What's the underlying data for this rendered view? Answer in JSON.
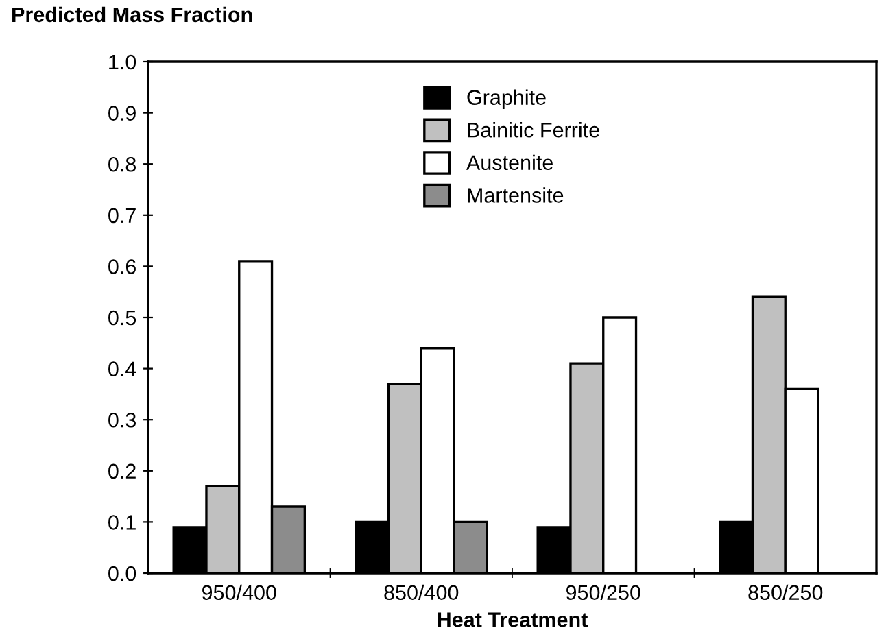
{
  "chart_data": {
    "type": "bar",
    "ylabel": "Predicted Mass Fraction",
    "xlabel": "Heat Treatment",
    "categories": [
      "950/400",
      "850/400",
      "950/250",
      "850/250"
    ],
    "series": [
      {
        "name": "Graphite",
        "color": "#000000",
        "values": [
          0.09,
          0.1,
          0.09,
          0.1
        ]
      },
      {
        "name": "Bainitic Ferrite",
        "color": "#c0c0c0",
        "values": [
          0.17,
          0.37,
          0.41,
          0.54
        ]
      },
      {
        "name": "Austenite",
        "color": "#ffffff",
        "values": [
          0.61,
          0.44,
          0.5,
          0.36
        ]
      },
      {
        "name": "Martensite",
        "color": "#8c8c8c",
        "values": [
          0.13,
          0.1,
          null,
          null
        ]
      }
    ],
    "ylim": [
      0,
      1.0
    ],
    "yticks": [
      {
        "value": 0,
        "label": "0.0"
      },
      0.1,
      0.2,
      0.3,
      0.4,
      0.5,
      0.6,
      0.7,
      0.8,
      0.9,
      {
        "value": 1,
        "label": "1.0"
      }
    ],
    "grid": false,
    "legend": "top center"
  }
}
